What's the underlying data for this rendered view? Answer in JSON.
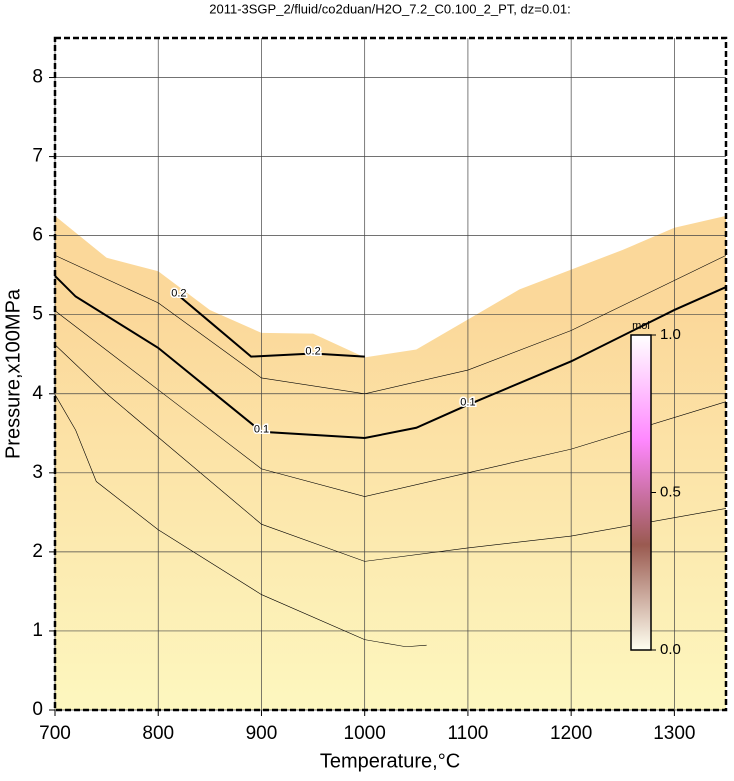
{
  "chart_data": {
    "type": "contour",
    "title": "2011-3SGP_2/fluid/co2duan/H2O_7.2_C0.100_2_PT, dz=0.01:",
    "x_label": "Temperature,°C",
    "y_label": "Pressure,x100MPa",
    "xlim": [
      700,
      1350
    ],
    "ylim": [
      0,
      8.5
    ],
    "xticks": [
      700,
      800,
      900,
      1000,
      1100,
      1200,
      1300
    ],
    "yticks": [
      0,
      1,
      2,
      3,
      4,
      5,
      6,
      7,
      8
    ],
    "grid": true,
    "region": {
      "colors": [
        "#fdf7bf",
        "#fbd89a"
      ],
      "x": [
        700,
        750,
        800,
        850,
        900,
        950,
        1000,
        1050,
        1100,
        1150,
        1200,
        1250,
        1300,
        1350
      ],
      "values": [
        6.25,
        5.72,
        5.55,
        5.06,
        4.77,
        4.76,
        4.46,
        4.56,
        4.94,
        5.32,
        5.57,
        5.82,
        6.1,
        6.25
      ]
    },
    "series": [
      {
        "name": "0.1",
        "color": "#000000",
        "width": 2,
        "x": [
          700,
          720,
          800,
          850,
          900,
          1000,
          1050,
          1100,
          1200,
          1300,
          1350
        ],
        "values": [
          5.49,
          5.23,
          4.58,
          4.05,
          3.52,
          3.44,
          3.57,
          3.86,
          4.41,
          5.06,
          5.35
        ]
      },
      {
        "name": "0.2",
        "color": "#000000",
        "width": 2,
        "x": [
          820,
          850,
          890,
          950,
          1000
        ],
        "values": [
          5.24,
          4.91,
          4.47,
          4.51,
          4.47
        ]
      },
      {
        "color": "#000000",
        "width": 0.6,
        "x": [
          700,
          720,
          740,
          800,
          900,
          1000,
          1040,
          1060
        ],
        "values": [
          3.99,
          3.54,
          2.89,
          2.28,
          1.46,
          0.89,
          0.8,
          0.82
        ]
      },
      {
        "color": "#000000",
        "width": 0.6,
        "x": [
          700,
          750,
          800,
          900,
          1000,
          1100,
          1200,
          1350
        ],
        "values": [
          4.62,
          4.0,
          3.45,
          2.35,
          1.88,
          2.05,
          2.2,
          2.55
        ]
      },
      {
        "color": "#000000",
        "width": 0.6,
        "x": [
          700,
          750,
          800,
          900,
          1000,
          1100,
          1200,
          1350
        ],
        "values": [
          5.05,
          4.55,
          4.05,
          3.05,
          2.7,
          3.0,
          3.3,
          3.9
        ]
      },
      {
        "color": "#000000",
        "width": 0.6,
        "x": [
          700,
          750,
          800,
          900,
          1000,
          1100,
          1200,
          1350
        ],
        "values": [
          5.75,
          5.45,
          5.15,
          4.2,
          4.0,
          4.3,
          4.8,
          5.75
        ]
      }
    ],
    "colorbar": {
      "label": "mol",
      "clim": [
        0,
        1
      ],
      "colors": [
        "#fffff0",
        "#9a5a50",
        "#ff88ff",
        "#ffffff"
      ],
      "ticks": [
        {
          "value": 0,
          "label": "0.0"
        },
        {
          "value": 0.5,
          "label": "0.5"
        },
        {
          "value": 1,
          "label": "1.0"
        }
      ]
    }
  }
}
